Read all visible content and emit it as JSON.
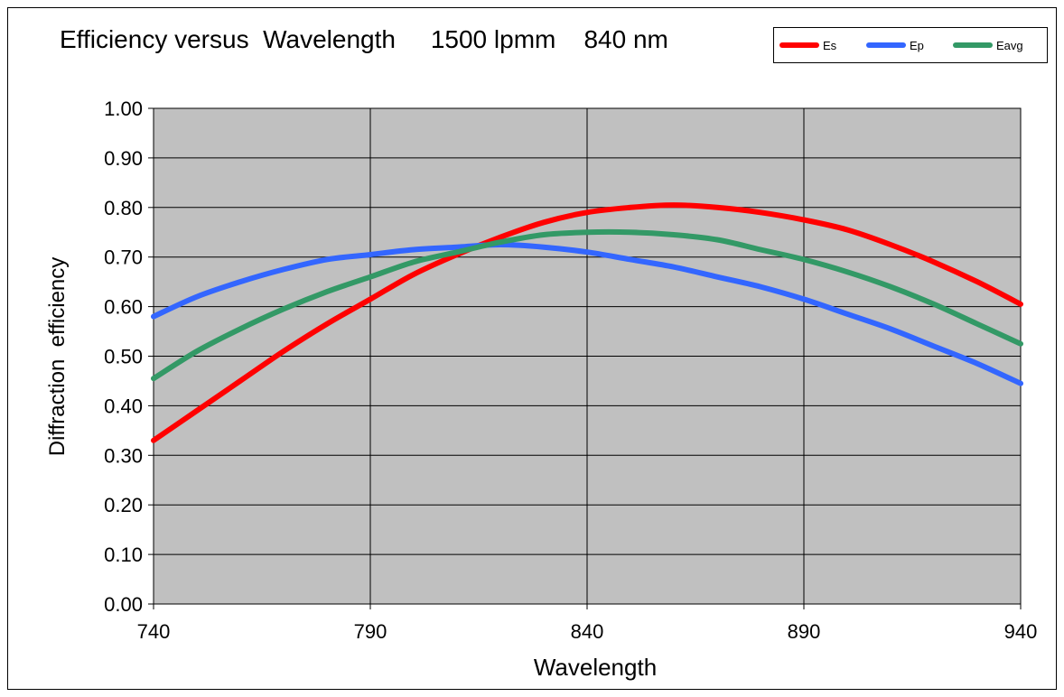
{
  "chart_data": {
    "type": "line",
    "title": "Efficiency versus  Wavelength     1500 lpmm    840 nm",
    "xlabel": "Wavelength",
    "ylabel": "Diffraction  efficiency",
    "xlim": [
      740,
      940
    ],
    "ylim": [
      0,
      1
    ],
    "x_ticks": [
      "740",
      "790",
      "840",
      "890",
      "940"
    ],
    "y_ticks": [
      "0.00",
      "0.10",
      "0.20",
      "0.30",
      "0.40",
      "0.50",
      "0.60",
      "0.70",
      "0.80",
      "0.90",
      "1.00"
    ],
    "grid": true,
    "legend_position": "top-right",
    "plot_background": "#C0C0C0",
    "x": [
      740,
      750,
      760,
      770,
      780,
      790,
      800,
      810,
      820,
      830,
      840,
      850,
      860,
      870,
      880,
      890,
      900,
      910,
      920,
      930,
      940
    ],
    "series": [
      {
        "name": "Es",
        "color": "#FF0000",
        "values": [
          0.33,
          0.39,
          0.45,
          0.51,
          0.565,
          0.615,
          0.665,
          0.705,
          0.74,
          0.77,
          0.79,
          0.8,
          0.805,
          0.8,
          0.79,
          0.775,
          0.755,
          0.725,
          0.69,
          0.65,
          0.605
        ]
      },
      {
        "name": "Ep",
        "color": "#3366FF",
        "values": [
          0.58,
          0.62,
          0.65,
          0.675,
          0.695,
          0.705,
          0.715,
          0.72,
          0.725,
          0.72,
          0.71,
          0.695,
          0.68,
          0.66,
          0.64,
          0.615,
          0.585,
          0.555,
          0.52,
          0.485,
          0.445
        ]
      },
      {
        "name": "Eavg",
        "color": "#339966",
        "values": [
          0.455,
          0.51,
          0.555,
          0.595,
          0.63,
          0.66,
          0.69,
          0.71,
          0.73,
          0.745,
          0.75,
          0.75,
          0.745,
          0.735,
          0.715,
          0.695,
          0.67,
          0.64,
          0.605,
          0.565,
          0.525
        ]
      }
    ]
  }
}
